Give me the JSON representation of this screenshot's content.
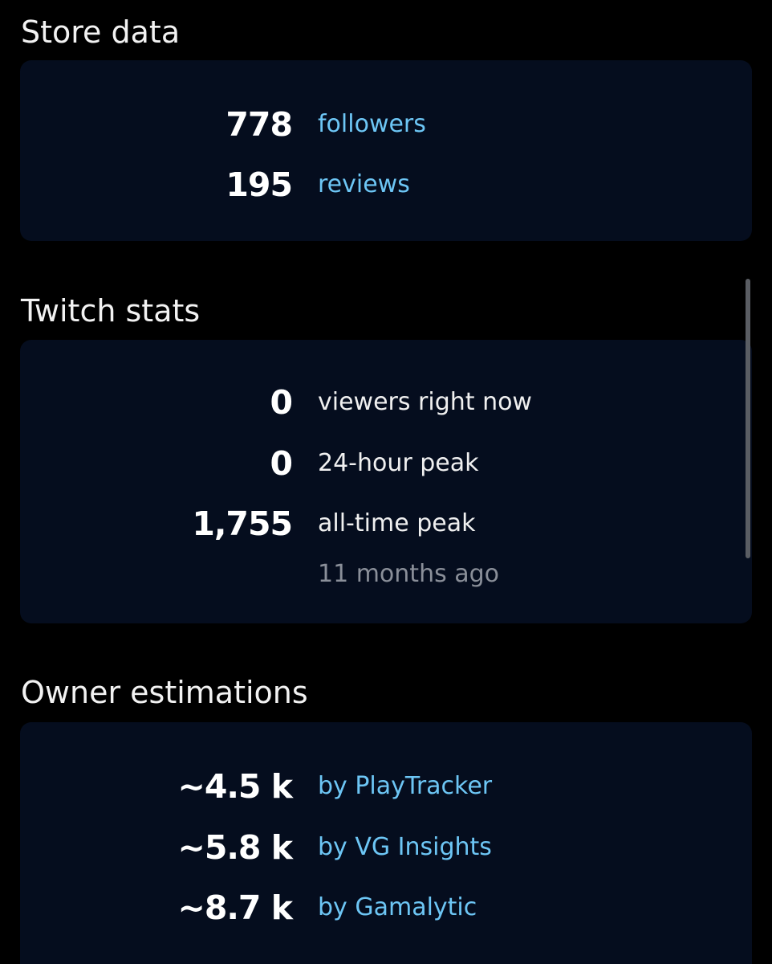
{
  "sections": {
    "store": {
      "title": "Store data",
      "rows": [
        {
          "value": "778",
          "label": "followers"
        },
        {
          "value": "195",
          "label": "reviews"
        }
      ]
    },
    "twitch": {
      "title": "Twitch stats",
      "rows": [
        {
          "value": "0",
          "label": "viewers right now"
        },
        {
          "value": "0",
          "label": "24-hour peak"
        },
        {
          "value": "1,755",
          "label": "all-time peak"
        }
      ],
      "peak_time": "11 months ago"
    },
    "owners": {
      "title": "Owner estimations",
      "rows": [
        {
          "value": "~4.5 k",
          "label": "by PlayTracker"
        },
        {
          "value": "~5.8 k",
          "label": "by VG Insights"
        },
        {
          "value": "~8.7 k",
          "label": "by Gamalytic"
        }
      ]
    }
  },
  "colors": {
    "background": "#000000",
    "card": "#050d1e",
    "link": "#6dc6f5",
    "muted": "#8a8f99"
  }
}
